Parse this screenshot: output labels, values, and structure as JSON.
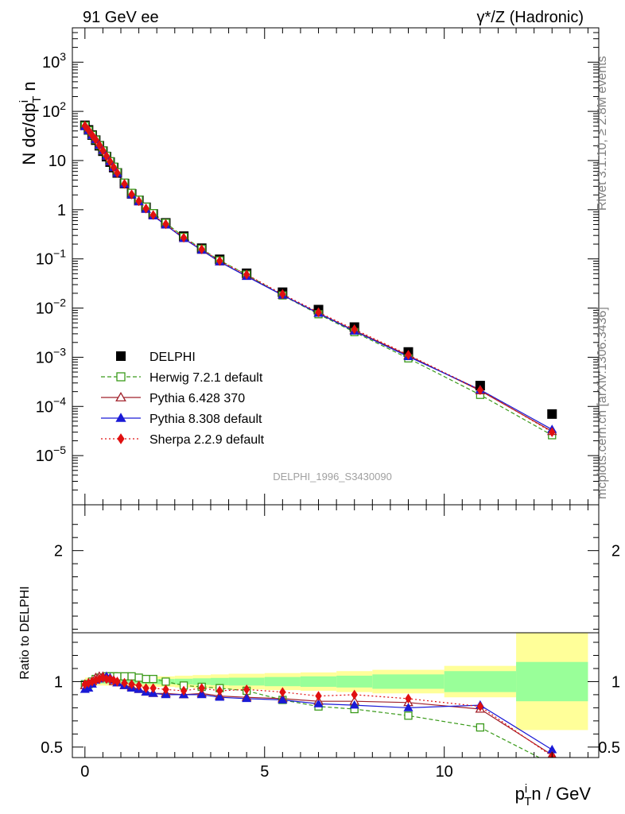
{
  "header": {
    "left_title": "91 GeV ee",
    "right_title": "γ*/Z (Hadronic)"
  },
  "side": {
    "rivet": "Rivet 3.1.10, ≥ 2.8M events",
    "mcplots": "mcplots.cern.ch [arXiv:1306.3436]"
  },
  "watermark": "DELPHI_1996_S3430090",
  "chart_data": [
    {
      "type": "scatter",
      "panel": "main",
      "yscale": "log",
      "ylabel": "N dσ/dp_T^i n",
      "ylim": [
        1e-06,
        5000
      ],
      "xlim": [
        -0.35,
        14.3
      ],
      "ytick_labels": [
        "10^-5",
        "10^-4",
        "10^-3",
        "10^-2",
        "10^-1",
        "1",
        "10",
        "10^2",
        "10^3"
      ],
      "x": [
        0.0,
        0.1,
        0.2,
        0.3,
        0.4,
        0.5,
        0.6,
        0.7,
        0.8,
        0.9,
        1.1,
        1.3,
        1.5,
        1.7,
        1.9,
        2.25,
        2.75,
        3.25,
        3.75,
        4.5,
        5.5,
        6.5,
        7.5,
        9.0,
        11.0,
        13.0
      ],
      "series": [
        {
          "name": "DELPHI",
          "color": "#000000",
          "marker": "square-filled",
          "line": "none",
          "values": [
            52,
            42,
            33,
            26,
            20,
            15.5,
            12,
            9.3,
            7.2,
            5.6,
            3.4,
            2.1,
            1.55,
            1.12,
            0.82,
            0.54,
            0.29,
            0.165,
            0.098,
            0.051,
            0.021,
            0.0093,
            0.0041,
            0.00128,
            0.000265,
            7e-05
          ]
        },
        {
          "name": "Herwig 7.2.1 default",
          "color": "#3a9a1a",
          "marker": "square-open",
          "line": "dashed",
          "values": [
            51,
            41,
            33,
            26.5,
            20.5,
            16,
            12.5,
            9.7,
            7.5,
            5.8,
            3.55,
            2.2,
            1.6,
            1.15,
            0.85,
            0.54,
            0.28,
            0.16,
            0.093,
            0.048,
            0.0181,
            0.0075,
            0.00325,
            0.00095,
            0.000172,
            2.6e-05
          ]
        },
        {
          "name": "Pythia 6.428 370",
          "color": "#a0202a",
          "marker": "triangle-open",
          "line": "solid",
          "values": [
            50,
            41.5,
            33,
            27,
            21,
            16,
            12.3,
            9.4,
            7.2,
            5.5,
            3.3,
            2.0,
            1.45,
            1.02,
            0.75,
            0.49,
            0.26,
            0.15,
            0.087,
            0.045,
            0.0183,
            0.0079,
            0.0035,
            0.00108,
            0.000209,
            3.1e-05
          ]
        },
        {
          "name": "Pythia 8.308 default",
          "color": "#1a1ad6",
          "marker": "triangle-filled",
          "line": "solid",
          "values": [
            49,
            40.5,
            32.5,
            26.5,
            20.5,
            16,
            12.4,
            9.5,
            7.2,
            5.5,
            3.3,
            2.0,
            1.45,
            1.02,
            0.75,
            0.49,
            0.26,
            0.15,
            0.087,
            0.044,
            0.0183,
            0.0078,
            0.0034,
            0.00103,
            0.000218,
            3.4e-05
          ]
        },
        {
          "name": "Sherpa 2.2.9 default",
          "color": "#e01010",
          "marker": "diamond-filled",
          "line": "dotted",
          "values": [
            51,
            41.5,
            33,
            26.5,
            20.5,
            16,
            12.3,
            9.5,
            7.3,
            5.6,
            3.35,
            2.05,
            1.5,
            1.06,
            0.78,
            0.51,
            0.27,
            0.157,
            0.091,
            0.048,
            0.0192,
            0.0082,
            0.0037,
            0.00112,
            0.000215,
            3e-05
          ]
        }
      ],
      "legend_position": "lower-left"
    },
    {
      "type": "scatter",
      "panel": "ratio",
      "ylabel": "Ratio to DELPHI",
      "xlabel": "p_T^i n / GeV",
      "ylim": [
        0.42,
        2.35
      ],
      "xlim": [
        -0.35,
        14.3
      ],
      "ytick_labels": [
        "0.5",
        "1",
        "2"
      ],
      "xtick_labels": [
        "0",
        "5",
        "10"
      ],
      "x": [
        0.0,
        0.1,
        0.2,
        0.3,
        0.4,
        0.5,
        0.6,
        0.7,
        0.8,
        0.9,
        1.1,
        1.3,
        1.5,
        1.7,
        1.9,
        2.25,
        2.75,
        3.25,
        3.75,
        4.5,
        5.5,
        6.5,
        7.5,
        9.0,
        11.0,
        13.0
      ],
      "uncertainty_bands": {
        "bin_edges": [
          0.0,
          0.5,
          1.0,
          1.5,
          2.0,
          2.5,
          3.0,
          3.5,
          4.0,
          5.0,
          6.0,
          7.0,
          8.0,
          10.0,
          12.0,
          14.0
        ],
        "stat_color": "#99ff99",
        "total_color": "#ffff99",
        "stat_halfwidth": [
          0.015,
          0.015,
          0.015,
          0.018,
          0.02,
          0.022,
          0.025,
          0.028,
          0.03,
          0.035,
          0.04,
          0.045,
          0.055,
          0.08,
          0.15
        ],
        "total_halfwidth": [
          0.03,
          0.03,
          0.035,
          0.038,
          0.04,
          0.045,
          0.05,
          0.055,
          0.06,
          0.065,
          0.07,
          0.08,
          0.09,
          0.12,
          0.37
        ]
      },
      "series": [
        {
          "name": "Herwig 7.2.1 default",
          "color": "#3a9a1a",
          "values": [
            0.98,
            0.98,
            1.0,
            1.02,
            1.03,
            1.03,
            1.04,
            1.04,
            1.04,
            1.04,
            1.04,
            1.04,
            1.03,
            1.02,
            1.02,
            1.0,
            0.97,
            0.96,
            0.95,
            0.93,
            0.86,
            0.81,
            0.79,
            0.74,
            0.65,
            0.37
          ]
        },
        {
          "name": "Pythia 6.428 370",
          "color": "#a0202a",
          "values": [
            0.97,
            0.99,
            1.0,
            1.03,
            1.04,
            1.04,
            1.03,
            1.02,
            1.0,
            0.99,
            0.97,
            0.96,
            0.94,
            0.92,
            0.91,
            0.91,
            0.9,
            0.91,
            0.89,
            0.88,
            0.87,
            0.85,
            0.85,
            0.84,
            0.79,
            0.44
          ]
        },
        {
          "name": "Pythia 8.308 default",
          "color": "#1a1ad6",
          "values": [
            0.94,
            0.95,
            0.98,
            1.01,
            1.02,
            1.03,
            1.04,
            1.03,
            1.01,
            0.99,
            0.97,
            0.95,
            0.94,
            0.92,
            0.91,
            0.9,
            0.9,
            0.9,
            0.88,
            0.87,
            0.86,
            0.83,
            0.82,
            0.8,
            0.82,
            0.48
          ]
        },
        {
          "name": "Sherpa 2.2.9 default",
          "color": "#e01010",
          "values": [
            0.98,
            0.99,
            1.0,
            1.01,
            1.02,
            1.03,
            1.02,
            1.02,
            1.01,
            1.0,
            0.99,
            0.98,
            0.97,
            0.95,
            0.95,
            0.94,
            0.93,
            0.95,
            0.93,
            0.94,
            0.92,
            0.89,
            0.9,
            0.87,
            0.81,
            0.43
          ]
        }
      ]
    }
  ]
}
